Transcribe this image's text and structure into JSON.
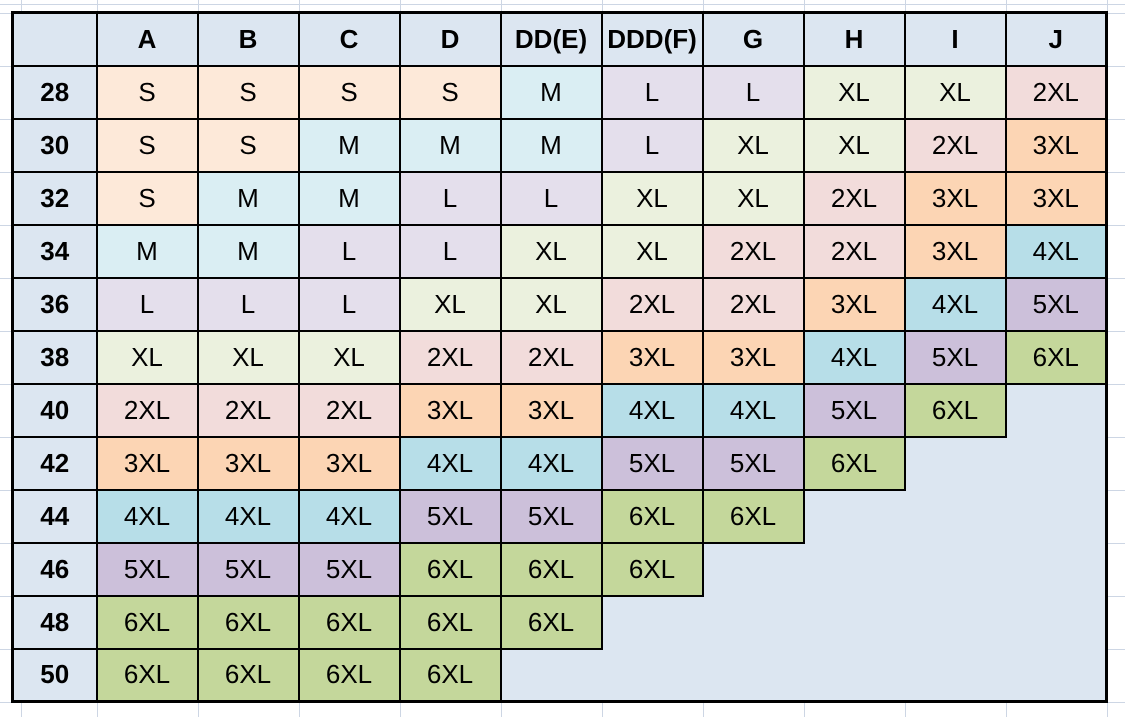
{
  "chart_data": {
    "type": "table",
    "title": "",
    "corner_label": "",
    "columns": [
      "A",
      "B",
      "C",
      "D",
      "DD(E)",
      "DDD(F)",
      "G",
      "H",
      "I",
      "J"
    ],
    "row_labels": [
      "28",
      "30",
      "32",
      "34",
      "36",
      "38",
      "40",
      "42",
      "44",
      "46",
      "48",
      "50"
    ],
    "rows": [
      [
        "S",
        "S",
        "S",
        "S",
        "M",
        "L",
        "L",
        "XL",
        "XL",
        "2XL"
      ],
      [
        "S",
        "S",
        "M",
        "M",
        "M",
        "L",
        "XL",
        "XL",
        "2XL",
        "3XL"
      ],
      [
        "S",
        "M",
        "M",
        "L",
        "L",
        "XL",
        "XL",
        "2XL",
        "3XL",
        "3XL"
      ],
      [
        "M",
        "M",
        "L",
        "L",
        "XL",
        "XL",
        "2XL",
        "2XL",
        "3XL",
        "4XL"
      ],
      [
        "L",
        "L",
        "L",
        "XL",
        "XL",
        "2XL",
        "2XL",
        "3XL",
        "4XL",
        "5XL"
      ],
      [
        "XL",
        "XL",
        "XL",
        "2XL",
        "2XL",
        "3XL",
        "3XL",
        "4XL",
        "5XL",
        "6XL"
      ],
      [
        "2XL",
        "2XL",
        "2XL",
        "3XL",
        "3XL",
        "4XL",
        "4XL",
        "5XL",
        "6XL",
        ""
      ],
      [
        "3XL",
        "3XL",
        "3XL",
        "4XL",
        "4XL",
        "5XL",
        "5XL",
        "6XL",
        "",
        ""
      ],
      [
        "4XL",
        "4XL",
        "4XL",
        "5XL",
        "5XL",
        "6XL",
        "6XL",
        "",
        "",
        ""
      ],
      [
        "5XL",
        "5XL",
        "5XL",
        "6XL",
        "6XL",
        "6XL",
        "",
        "",
        "",
        ""
      ],
      [
        "6XL",
        "6XL",
        "6XL",
        "6XL",
        "6XL",
        "",
        "",
        "",
        "",
        ""
      ],
      [
        "6XL",
        "6XL",
        "6XL",
        "6XL",
        "",
        "",
        "",
        "",
        "",
        ""
      ]
    ],
    "value_color_map": {
      "S": "#FDE9D9",
      "M": "#DAEEF3",
      "L": "#E4DFEC",
      "XL": "#EBF1DE",
      "2XL": "#F2DCDB",
      "3XL": "#FCD5B4",
      "4XL": "#B7DEE8",
      "5XL": "#CCC0DA",
      "6XL": "#C4D79B"
    },
    "header_fill": "#DCE6F1",
    "empty_cell_fill": "#DCE6F1",
    "layout_hints": {
      "grid": "on",
      "border_color": "#000000",
      "gridline_color": "#CDD6E4",
      "page_background": "#FFFFFF",
      "text_color": "#000000"
    }
  }
}
